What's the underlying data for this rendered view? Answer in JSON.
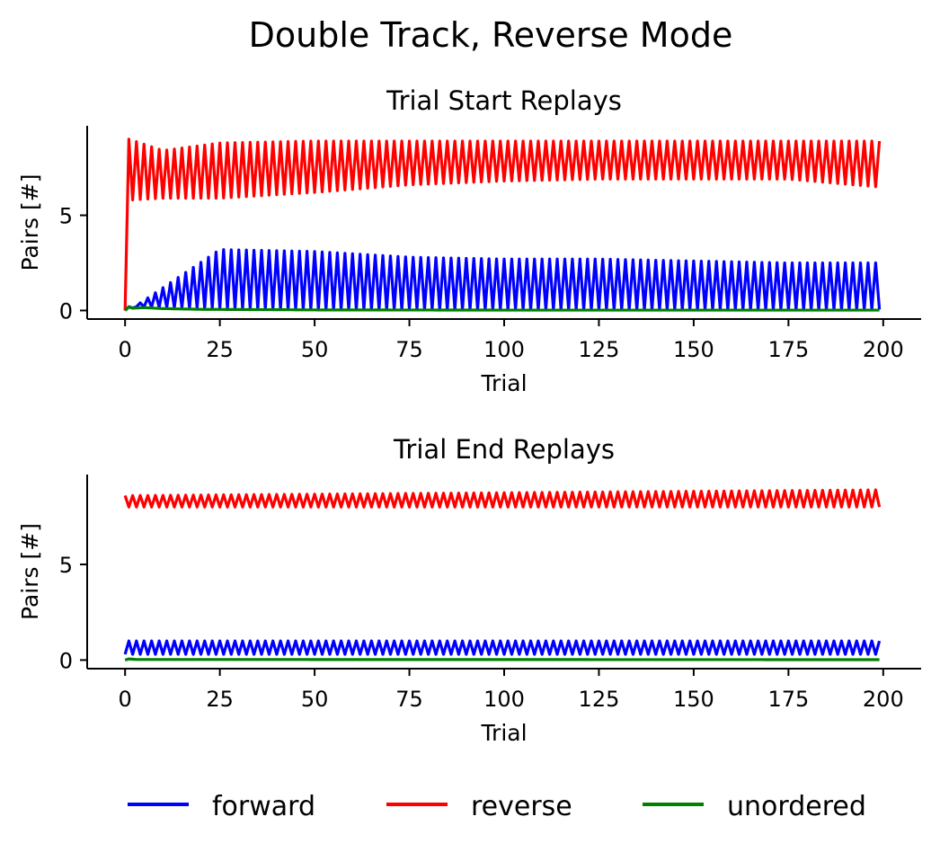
{
  "figure_title": "Double Track, Reverse Mode",
  "legend": [
    {
      "key": "forward",
      "label": "forward",
      "color": "#0000ff"
    },
    {
      "key": "reverse",
      "label": "reverse",
      "color": "#ff0000"
    },
    {
      "key": "unordered",
      "label": "unordered",
      "color": "#008000"
    }
  ],
  "chart_data": [
    {
      "type": "line",
      "title": "Trial Start Replays",
      "xlabel": "Trial",
      "ylabel": "Pairs [#]",
      "xlim": [
        -10,
        210
      ],
      "ylim": [
        -0.45,
        9.7
      ],
      "xticks": [
        0,
        25,
        50,
        75,
        100,
        125,
        150,
        175,
        200
      ],
      "yticks": [
        0,
        5
      ],
      "n_trials": 200,
      "series": [
        {
          "name": "forward",
          "color": "#0000ff",
          "x": [
            0,
            1,
            25,
            50,
            75,
            100,
            125,
            150,
            175,
            198,
            199
          ],
          "even_peak": [
            0.0,
            0.0,
            3.2,
            3.1,
            2.8,
            2.7,
            2.7,
            2.6,
            2.5,
            2.5,
            2.5
          ],
          "odd_trough": [
            0.0,
            0.2,
            0.1,
            0.05,
            0.05,
            0.05,
            0.05,
            0.05,
            0.05,
            0.05,
            0.05
          ]
        },
        {
          "name": "reverse",
          "color": "#ff0000",
          "x": [
            0,
            1,
            10,
            25,
            50,
            75,
            100,
            125,
            150,
            175,
            198,
            199
          ],
          "even_trough": [
            0.0,
            5.8,
            5.9,
            5.9,
            6.2,
            6.6,
            6.8,
            6.9,
            6.9,
            6.9,
            6.5,
            6.5
          ],
          "odd_peak": [
            0.0,
            9.0,
            8.4,
            8.8,
            8.9,
            8.9,
            8.9,
            8.9,
            8.9,
            8.9,
            8.9,
            8.9
          ]
        },
        {
          "name": "unordered",
          "color": "#008000",
          "x": [
            0,
            1,
            2,
            5,
            10,
            20,
            50,
            100,
            199
          ],
          "y": [
            0.0,
            0.18,
            0.12,
            0.15,
            0.1,
            0.06,
            0.03,
            0.02,
            0.02
          ]
        }
      ]
    },
    {
      "type": "line",
      "title": "Trial End Replays",
      "xlabel": "Trial",
      "ylabel": "Pairs [#]",
      "xlim": [
        -10,
        210
      ],
      "ylim": [
        -0.45,
        9.7
      ],
      "xticks": [
        0,
        25,
        50,
        75,
        100,
        125,
        150,
        175,
        200
      ],
      "yticks": [
        0,
        5
      ],
      "n_trials": 200,
      "series": [
        {
          "name": "forward",
          "color": "#0000ff",
          "x": [
            0,
            199
          ],
          "even_level": [
            0.3,
            0.3
          ],
          "odd_level": [
            1.0,
            1.0
          ]
        },
        {
          "name": "reverse",
          "color": "#ff0000",
          "x": [
            0,
            199
          ],
          "even_level": [
            8.6,
            8.9
          ],
          "odd_level": [
            8.0,
            8.0
          ]
        },
        {
          "name": "unordered",
          "color": "#008000",
          "x": [
            0,
            1,
            3,
            199
          ],
          "y": [
            0.0,
            0.06,
            0.03,
            0.02
          ]
        }
      ]
    }
  ]
}
